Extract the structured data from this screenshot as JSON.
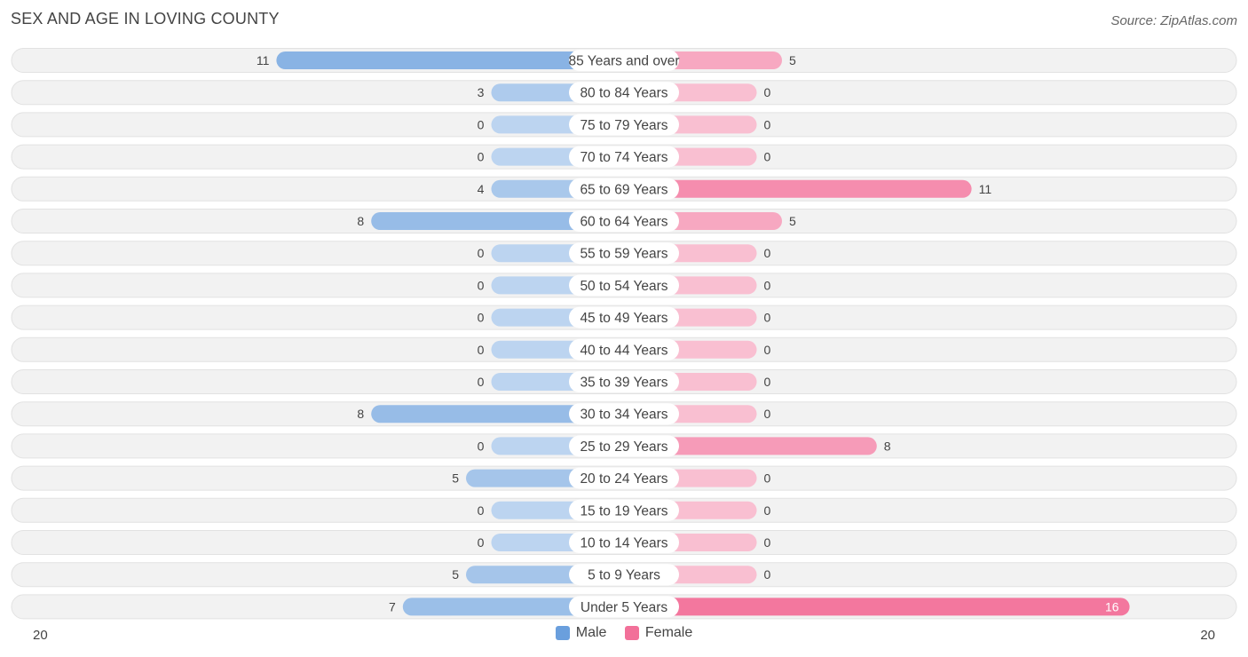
{
  "header": {
    "title": "SEX AND AGE IN LOVING COUNTY",
    "source": "Source: ZipAtlas.com"
  },
  "chart_data": {
    "type": "bar",
    "orientation": "horizontal-diverging",
    "title": "SEX AND AGE IN LOVING COUNTY",
    "categories": [
      "85 Years and over",
      "80 to 84 Years",
      "75 to 79 Years",
      "70 to 74 Years",
      "65 to 69 Years",
      "60 to 64 Years",
      "55 to 59 Years",
      "50 to 54 Years",
      "45 to 49 Years",
      "40 to 44 Years",
      "35 to 39 Years",
      "30 to 34 Years",
      "25 to 29 Years",
      "20 to 24 Years",
      "15 to 19 Years",
      "10 to 14 Years",
      "5 to 9 Years",
      "Under 5 Years"
    ],
    "series": [
      {
        "name": "Male",
        "color": "#6a9fdd",
        "values": [
          11,
          3,
          0,
          0,
          4,
          8,
          0,
          0,
          0,
          0,
          0,
          8,
          0,
          5,
          0,
          0,
          5,
          7
        ]
      },
      {
        "name": "Female",
        "color": "#f27099",
        "values": [
          5,
          0,
          0,
          0,
          11,
          5,
          0,
          0,
          0,
          0,
          0,
          0,
          8,
          0,
          0,
          0,
          0,
          16
        ]
      }
    ],
    "axis_max": 20,
    "axis_left_label": "20",
    "axis_right_label": "20",
    "legend_position": "bottom-center"
  }
}
